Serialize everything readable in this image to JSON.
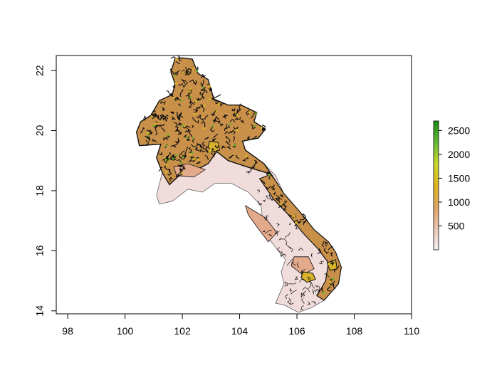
{
  "chart_data": {
    "type": "heatmap",
    "title": "",
    "xlabel": "",
    "ylabel": "",
    "xlim": [
      97.6,
      110.0
    ],
    "ylim": [
      13.9,
      22.5
    ],
    "x_ticks": [
      98,
      100,
      102,
      104,
      106,
      108,
      110
    ],
    "y_ticks": [
      14,
      16,
      18,
      20,
      22
    ],
    "x_tick_labels": [
      "98",
      "100",
      "102",
      "104",
      "106",
      "108",
      "110"
    ],
    "y_tick_labels": [
      "14",
      "16",
      "18",
      "20",
      "22"
    ],
    "legend": {
      "placement": "right",
      "range": [
        0,
        2700
      ],
      "ticks": [
        500,
        1000,
        1500,
        2000,
        2500
      ],
      "tick_labels": [
        "500",
        "1000",
        "1500",
        "2000",
        "2500"
      ],
      "colors": [
        "#f2f2f2",
        "#ecc3b2",
        "#dfa460",
        "#e0b520",
        "#c8d82a",
        "#62b834",
        "#1b8a14"
      ]
    },
    "region_colors": {
      "lowland": "#f1dcdc",
      "foothill": "#e2a98a",
      "upland": "#c9904a",
      "highland": "#d7b22a",
      "peak": "#6eac2a",
      "contour": "#111111"
    }
  }
}
